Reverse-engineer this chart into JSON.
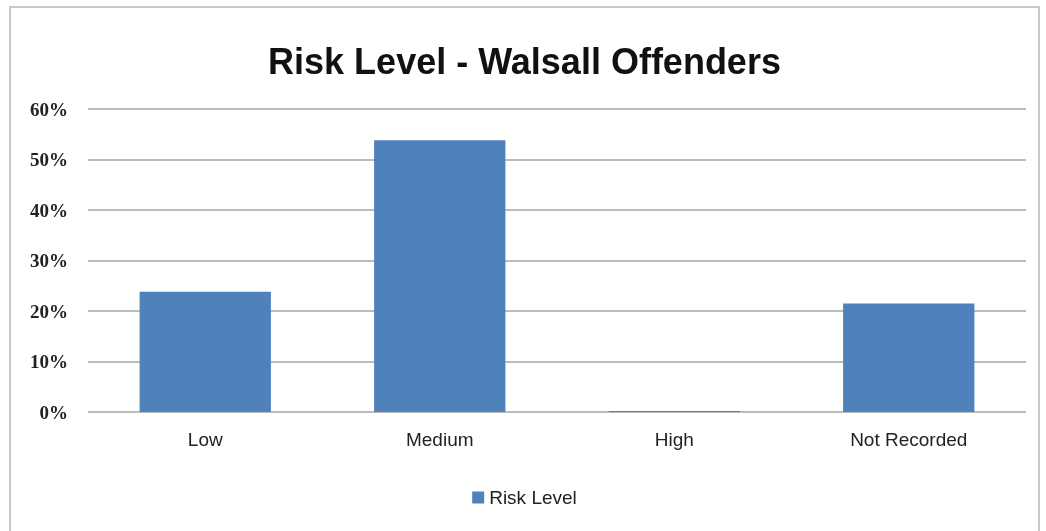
{
  "chart_data": {
    "type": "bar",
    "title": "Risk Level - Walsall Offenders",
    "categories": [
      "Low",
      "Medium",
      "High",
      "Not Recorded"
    ],
    "series": [
      {
        "name": "Risk Level",
        "color": "#4f81bd",
        "values": [
          23.8,
          53.8,
          0.2,
          21.5
        ]
      }
    ],
    "ylim": [
      0,
      60
    ],
    "yticks": [
      {
        "value": 0,
        "label": "0%"
      },
      {
        "value": 10,
        "label": "10%"
      },
      {
        "value": 20,
        "label": "20%"
      },
      {
        "value": 30,
        "label": "30%"
      },
      {
        "value": 40,
        "label": "40%"
      },
      {
        "value": 50,
        "label": "50%"
      },
      {
        "value": 60,
        "label": "60%"
      }
    ],
    "grid": "y",
    "legend": "bottom"
  }
}
